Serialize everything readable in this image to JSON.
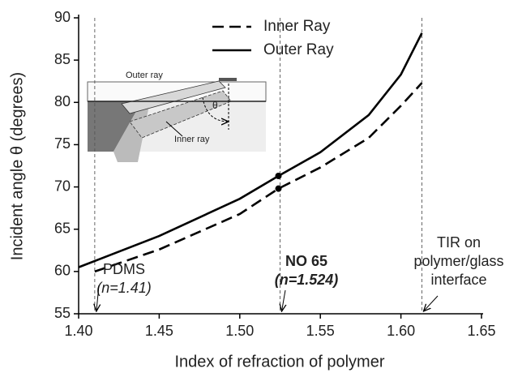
{
  "chart_data": {
    "type": "line",
    "xlabel": "Index of refraction of polymer",
    "ylabel": "Incident angle θ (degrees)",
    "xlim": [
      1.4,
      1.65
    ],
    "ylim": [
      55,
      90
    ],
    "xticks": [
      {
        "value": 1.4,
        "label": "1.40"
      },
      1.45,
      {
        "value": 1.5,
        "label": "1.50"
      },
      1.55,
      {
        "value": 1.6,
        "label": "1.60"
      },
      1.65
    ],
    "yticks": [
      55,
      60,
      65,
      70,
      75,
      80,
      85,
      90
    ],
    "legend": "top",
    "series": [
      {
        "name": "Inner Ray",
        "color": "#000000",
        "dash": true,
        "x": [
          1.41,
          1.45,
          1.5,
          1.524,
          1.55,
          1.58,
          1.6,
          1.613
        ],
        "values": [
          60.0,
          62.6,
          66.8,
          69.8,
          72.3,
          75.8,
          79.6,
          82.3
        ]
      },
      {
        "name": "Outer Ray",
        "color": "#000000",
        "dash": false,
        "x": [
          1.4,
          1.45,
          1.5,
          1.524,
          1.55,
          1.58,
          1.6,
          1.613
        ],
        "values": [
          60.5,
          64.2,
          68.6,
          71.3,
          74.1,
          78.5,
          83.3,
          88.2
        ]
      }
    ],
    "dots": [
      {
        "x": 1.524,
        "y": 71.3
      },
      {
        "x": 1.524,
        "y": 69.8
      }
    ],
    "reference_lines": [
      1.41,
      1.525,
      1.613
    ],
    "annotations": [
      {
        "lines": [
          "PDMS",
          "(n=1.41)"
        ]
      },
      {
        "lines": [
          "NO 65",
          "(n=1.524)"
        ]
      },
      {
        "lines": [
          "TIR on",
          "polymer/glass",
          "interface"
        ]
      }
    ],
    "inset": {
      "outer_label": "Outer ray",
      "inner_label": "Inner ray",
      "angle_label": "θ"
    }
  }
}
